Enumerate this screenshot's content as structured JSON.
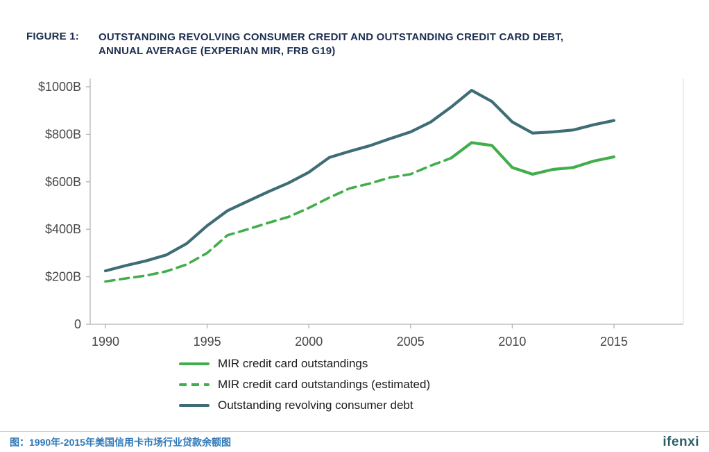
{
  "figure": {
    "label": "FIGURE 1:",
    "title_line1": "OUTSTANDING REVOLVING CONSUMER CREDIT AND OUTSTANDING CREDIT CARD DEBT,",
    "title_line2": "ANNUAL AVERAGE (EXPERIAN MIR, FRB G19)"
  },
  "colors": {
    "green": "#42ae4b",
    "teal": "#3e6d75",
    "navy": "#1c2d4f",
    "caption_blue": "#2e78b8",
    "brand_teal": "#2b5e66",
    "axis": "#b3b3b3",
    "axis_light": "#d9d9d9",
    "tick_text": "#474747",
    "legend_text": "#1a1a1a",
    "divider": "#d0d0d0"
  },
  "chart_data": {
    "type": "line",
    "title": "Outstanding revolving consumer credit and outstanding credit card debt, annual average (Experian MIR, FRB G19)",
    "xlabel": "",
    "ylabel": "",
    "xlim": [
      1990,
      2015
    ],
    "ylim": [
      0,
      1000
    ],
    "grid": false,
    "legend_position": "bottom-left",
    "x": [
      1990,
      1991,
      1992,
      1993,
      1994,
      1995,
      1996,
      1997,
      1998,
      1999,
      2000,
      2001,
      2002,
      2003,
      2004,
      2005,
      2006,
      2007,
      2008,
      2009,
      2010,
      2011,
      2012,
      2013,
      2014,
      2015
    ],
    "xticks": [
      1990,
      1995,
      2000,
      2005,
      2010,
      2015
    ],
    "yticks": [
      {
        "value": 0,
        "label": "0"
      },
      {
        "value": 200,
        "label": "$200B"
      },
      {
        "value": 400,
        "label": "$400B"
      },
      {
        "value": 600,
        "label": "$600B"
      },
      {
        "value": 800,
        "label": "$800B"
      },
      {
        "value": 1000,
        "label": "$1000B"
      }
    ],
    "series": [
      {
        "id": "mir-credit-card-outstandings-estimated",
        "name": "MIR credit card outstandings (estimated)",
        "color": "green",
        "style": "dashed",
        "values": [
          180,
          193,
          205,
          223,
          252,
          300,
          375,
          400,
          427,
          452,
          490,
          533,
          572,
          593,
          618,
          632,
          668,
          700,
          null,
          null,
          null,
          null,
          null,
          null,
          null,
          null
        ]
      },
      {
        "id": "mir-credit-card-outstandings",
        "name": "MIR credit card outstandings",
        "color": "green",
        "style": "solid",
        "values": [
          null,
          null,
          null,
          null,
          null,
          null,
          null,
          null,
          null,
          null,
          null,
          null,
          null,
          null,
          null,
          null,
          null,
          700,
          765,
          753,
          660,
          632,
          652,
          660,
          687,
          705
        ]
      },
      {
        "id": "outstanding-revolving-consumer-debt",
        "name": "Outstanding revolving consumer debt",
        "color": "teal",
        "style": "solid",
        "values": [
          225,
          247,
          267,
          292,
          340,
          415,
          478,
          518,
          558,
          595,
          640,
          702,
          728,
          752,
          782,
          810,
          852,
          915,
          985,
          938,
          852,
          805,
          810,
          818,
          840,
          858
        ]
      }
    ],
    "legend": [
      "MIR credit card outstandings",
      "MIR credit card outstandings (estimated)",
      "Outstanding revolving consumer debt"
    ]
  },
  "footer": {
    "caption": "图：1990年-2015年美国信用卡市场行业贷款余额图",
    "brand": "ifenxi"
  }
}
